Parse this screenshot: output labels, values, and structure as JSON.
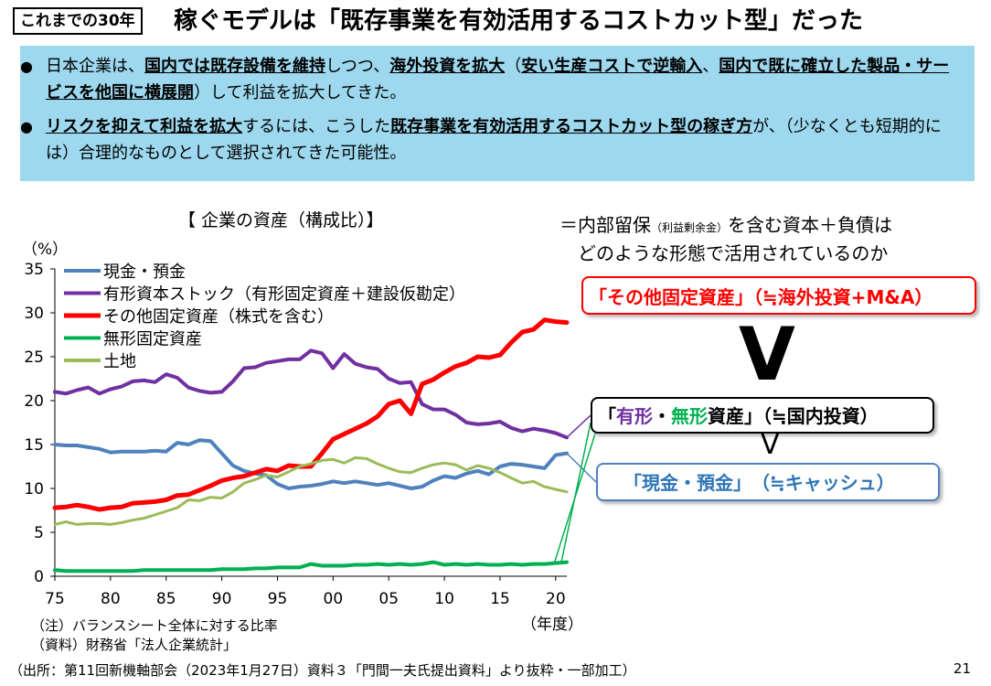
{
  "header": {
    "tag": "これまでの30年",
    "title": "稼ぐモデルは「既存事業を有効活用するコストカット型」だった"
  },
  "summary": {
    "bullet1": [
      {
        "t": "日本企業は、",
        "b": false
      },
      {
        "t": "国内では既存設備を維持",
        "b": true
      },
      {
        "t": "しつつ、",
        "b": false
      },
      {
        "t": "海外投資を拡大",
        "b": true
      },
      {
        "t": "（",
        "b": false
      },
      {
        "t": "安い生産コストで逆輸入",
        "b": true
      },
      {
        "t": "、",
        "b": false
      },
      {
        "t": "国内で既に確立した製品・サービスを他国に横展開",
        "b": true
      },
      {
        "t": "）して利益を拡大してきた。",
        "b": false
      }
    ],
    "bullet2": [
      {
        "t": "リスクを抑えて利益を拡大",
        "b": true
      },
      {
        "t": "するには、こうした",
        "b": false
      },
      {
        "t": "既存事業を有効活用するコストカット型の稼ぎ方",
        "b": true
      },
      {
        "t": "が、（少なくとも短期的には）合理的なものとして選択されてきた可能性。",
        "b": false
      }
    ]
  },
  "right_panel": {
    "line1_a": "＝内部留保",
    "line1_small": "（利益剰余金）",
    "line1_b": "を含む資本＋負債は",
    "line2": "どのような形態で活用されているのか",
    "box_other": "「その他固定資産」（≒海外投資+M&A）",
    "vee": "V",
    "box_tangible_open": "「",
    "box_tangible_a": "有形",
    "box_tangible_dot": "・",
    "box_tangible_b": "無形",
    "box_tangible_rest": "資産」（≒国内投資）",
    "vee_small": "V",
    "box_cash": "「現金・預金」　（≒キャッシュ）"
  },
  "footer": {
    "note1": "（注）バランスシート全体に対する比率",
    "note2": "（資料）財務省「法人企業統計」",
    "source": "（出所：第11回新機軸部会（2023年1月27日）資料３「門間一夫氏提出資料」より抜粋・一部加工）",
    "page": "21"
  },
  "colors": {
    "cash": "#4f81bd",
    "tangible": "#7030a0",
    "other": "#ff0000",
    "intangible": "#00b050",
    "land": "#9bbb59"
  },
  "chart_data": {
    "type": "line",
    "title": "【 企業の資産（構成比）】",
    "ylabel": "（%）",
    "xlabel": "（年度）",
    "ylim": [
      0,
      35
    ],
    "yticks": [
      "0",
      "5",
      "10",
      "15",
      "20",
      "25",
      "30",
      "35"
    ],
    "xticks": [
      {
        "year": 1975,
        "label": "75"
      },
      {
        "year": 1980,
        "label": "80"
      },
      {
        "year": 1985,
        "label": "85"
      },
      {
        "year": 1990,
        "label": "90"
      },
      {
        "year": 1995,
        "label": "95"
      },
      {
        "year": 2000,
        "label": "00"
      },
      {
        "year": 2005,
        "label": "05"
      },
      {
        "year": 2010,
        "label": "10"
      },
      {
        "year": 2015,
        "label": "15"
      },
      {
        "year": 2020,
        "label": "20"
      }
    ],
    "xlim": [
      1975,
      2021
    ],
    "legend_position": "top-left",
    "x": [
      1975,
      1976,
      1977,
      1978,
      1979,
      1980,
      1981,
      1982,
      1983,
      1984,
      1985,
      1986,
      1987,
      1988,
      1989,
      1990,
      1991,
      1992,
      1993,
      1994,
      1995,
      1996,
      1997,
      1998,
      1999,
      2000,
      2001,
      2002,
      2003,
      2004,
      2005,
      2006,
      2007,
      2008,
      2009,
      2010,
      2011,
      2012,
      2013,
      2014,
      2015,
      2016,
      2017,
      2018,
      2019,
      2020,
      2021
    ],
    "series": [
      {
        "name": "現金・預金",
        "key": "cash",
        "width": 4,
        "values": [
          15.0,
          14.9,
          14.9,
          14.7,
          14.5,
          14.1,
          14.2,
          14.2,
          14.2,
          14.3,
          14.2,
          15.2,
          15.0,
          15.5,
          15.4,
          14.0,
          12.6,
          12.0,
          11.7,
          11.5,
          10.5,
          10.0,
          10.2,
          10.3,
          10.5,
          10.8,
          10.6,
          10.8,
          10.6,
          10.4,
          10.6,
          10.3,
          10.0,
          10.2,
          10.9,
          11.4,
          11.2,
          11.7,
          12.0,
          11.6,
          12.5,
          12.8,
          12.7,
          12.5,
          12.3,
          13.8,
          14.0
        ]
      },
      {
        "name": "有形資本ストック（有形固定資産＋建設仮勘定）",
        "key": "tangible",
        "width": 4,
        "values": [
          21.0,
          20.8,
          21.2,
          21.5,
          20.8,
          21.3,
          21.6,
          22.2,
          22.3,
          22.1,
          23.0,
          22.6,
          21.5,
          21.1,
          20.9,
          21.0,
          22.2,
          23.7,
          23.8,
          24.3,
          24.5,
          24.7,
          24.7,
          25.7,
          25.4,
          23.7,
          25.3,
          24.2,
          23.8,
          23.6,
          22.5,
          22.0,
          22.1,
          19.6,
          19.0,
          19.0,
          18.4,
          17.5,
          17.3,
          17.4,
          17.6,
          16.9,
          16.5,
          16.8,
          16.6,
          16.3,
          15.8
        ]
      },
      {
        "name": "その他固定資産（株式を含む）",
        "key": "other",
        "width": 5,
        "values": [
          7.8,
          7.9,
          8.1,
          7.9,
          7.6,
          7.8,
          7.9,
          8.3,
          8.4,
          8.5,
          8.7,
          9.2,
          9.3,
          9.8,
          10.3,
          10.9,
          11.2,
          11.4,
          11.8,
          12.2,
          12.0,
          12.6,
          12.5,
          12.5,
          14.0,
          15.6,
          16.2,
          16.8,
          17.4,
          18.2,
          19.6,
          20.0,
          18.5,
          21.9,
          22.4,
          23.2,
          23.9,
          24.3,
          25.0,
          24.9,
          25.2,
          26.6,
          27.8,
          28.1,
          29.2,
          29.0,
          28.9
        ]
      },
      {
        "name": "無形固定資産",
        "key": "intangible",
        "width": 4,
        "values": [
          0.7,
          0.6,
          0.6,
          0.6,
          0.6,
          0.6,
          0.6,
          0.6,
          0.7,
          0.7,
          0.7,
          0.7,
          0.7,
          0.7,
          0.7,
          0.8,
          0.8,
          0.8,
          0.9,
          0.9,
          1.0,
          1.0,
          1.0,
          1.4,
          1.2,
          1.2,
          1.2,
          1.3,
          1.3,
          1.4,
          1.3,
          1.4,
          1.3,
          1.4,
          1.6,
          1.3,
          1.4,
          1.3,
          1.4,
          1.3,
          1.3,
          1.4,
          1.3,
          1.4,
          1.4,
          1.5,
          1.6
        ]
      },
      {
        "name": "土地",
        "key": "land",
        "width": 3,
        "values": [
          5.9,
          6.2,
          5.9,
          6.0,
          6.0,
          5.9,
          6.1,
          6.4,
          6.6,
          7.0,
          7.4,
          7.8,
          8.7,
          8.6,
          9.0,
          8.9,
          9.6,
          10.6,
          11.0,
          11.5,
          11.3,
          11.9,
          12.5,
          12.8,
          13.2,
          13.3,
          12.9,
          13.5,
          13.4,
          12.8,
          12.3,
          11.9,
          11.8,
          12.3,
          12.7,
          12.9,
          12.7,
          12.1,
          12.6,
          12.3,
          11.8,
          11.2,
          10.6,
          10.8,
          10.2,
          9.9,
          9.6
        ]
      }
    ]
  }
}
